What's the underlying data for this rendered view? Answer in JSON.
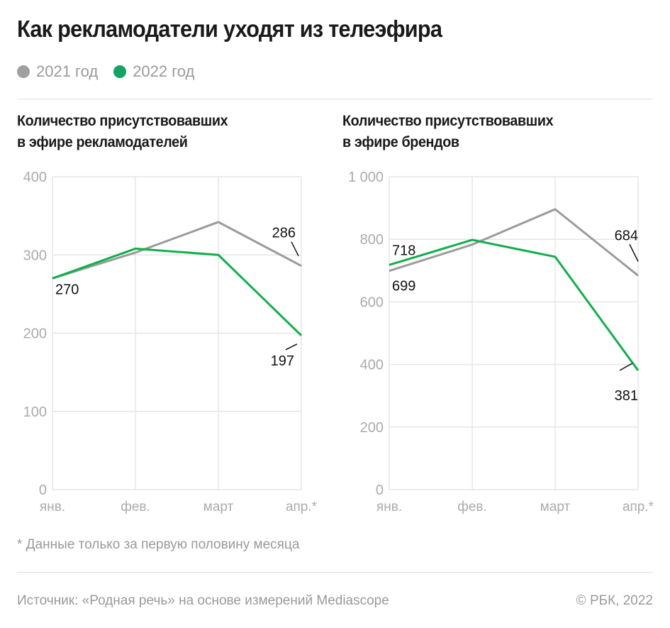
{
  "header": {
    "title": "Как рекламодатели уходят из телеэфира"
  },
  "legend": [
    {
      "label": "2021 год",
      "color": "#a0a0a0"
    },
    {
      "label": "2022 год",
      "color": "#12a560"
    }
  ],
  "footer": {
    "note": "* Данные только за первую половину месяца",
    "source": "Источник: «Родная речь» на основе измерений Mediascope",
    "copyright": "© РБК, 2022"
  },
  "chart_data": [
    {
      "type": "line",
      "title_line1": "Количество присутствовавших",
      "title_line2": "в эфире рекламодателей",
      "categories": [
        "янв.",
        "фев.",
        "март",
        "апр.*"
      ],
      "ylim": [
        0,
        400
      ],
      "yticks": [
        0,
        100,
        200,
        300,
        400
      ],
      "ytick_labels": [
        "0",
        "100",
        "200",
        "300",
        "400"
      ],
      "grid": true,
      "series": [
        {
          "name": "2021 год",
          "color": "#9b9b9b",
          "values": [
            270,
            303,
            342,
            286
          ]
        },
        {
          "name": "2022 год",
          "color": "#10b04a",
          "values": [
            270,
            308,
            300,
            197
          ]
        }
      ],
      "annotations": [
        {
          "series": 0,
          "index": 0,
          "text": "270"
        },
        {
          "series": 0,
          "index": 3,
          "text": "286"
        },
        {
          "series": 1,
          "index": 3,
          "text": "197"
        }
      ]
    },
    {
      "type": "line",
      "title_line1": "Количество присутствовавших",
      "title_line2": "в эфире брендов",
      "categories": [
        "янв.",
        "фев.",
        "март",
        "апр.*"
      ],
      "ylim": [
        0,
        1000
      ],
      "yticks": [
        0,
        200,
        400,
        600,
        800,
        1000
      ],
      "ytick_labels": [
        "0",
        "200",
        "400",
        "600",
        "800",
        "1 000"
      ],
      "grid": true,
      "series": [
        {
          "name": "2021 год",
          "color": "#9b9b9b",
          "values": [
            699,
            783,
            896,
            684
          ]
        },
        {
          "name": "2022 год",
          "color": "#10b04a",
          "values": [
            718,
            798,
            744,
            381
          ]
        }
      ],
      "annotations": [
        {
          "series": 1,
          "index": 0,
          "text": "718"
        },
        {
          "series": 0,
          "index": 0,
          "text": "699"
        },
        {
          "series": 0,
          "index": 3,
          "text": "684"
        },
        {
          "series": 1,
          "index": 3,
          "text": "381"
        }
      ]
    }
  ]
}
